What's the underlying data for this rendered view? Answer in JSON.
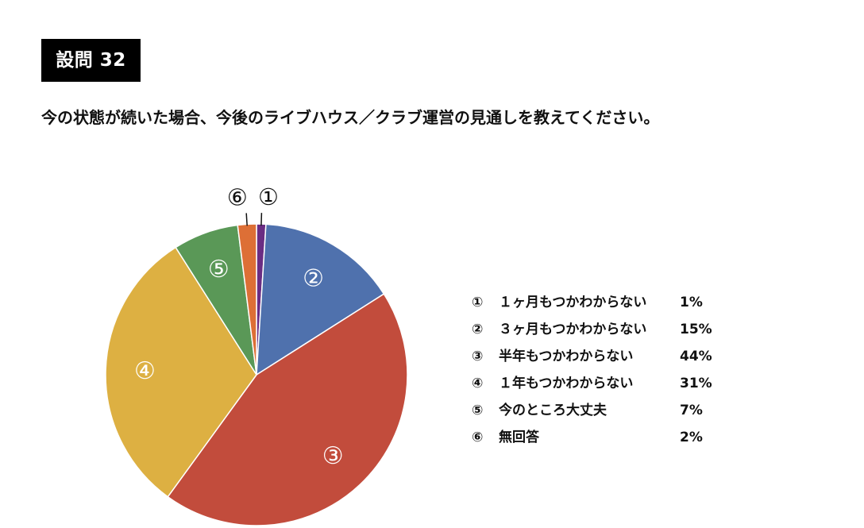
{
  "header": {
    "badge": "設問 32",
    "question": "今の状態が続いた場合、今後のライブハウス／クラブ運営の見通しを教えてください。"
  },
  "chart_data": {
    "type": "pie",
    "start_angle": "12 o'clock",
    "direction": "clockwise",
    "slices": [
      {
        "marker": "①",
        "label": "１ヶ月もつかわからない",
        "value": 1,
        "value_label": "1%",
        "color": "#6a2d83"
      },
      {
        "marker": "②",
        "label": "３ヶ月もつかわからない",
        "value": 15,
        "value_label": "15%",
        "color": "#4f71ad"
      },
      {
        "marker": "③",
        "label": "半年もつかわからない",
        "value": 44,
        "value_label": "44%",
        "color": "#c24c3c"
      },
      {
        "marker": "④",
        "label": "１年もつかわからない",
        "value": 31,
        "value_label": "31%",
        "color": "#ddb042"
      },
      {
        "marker": "⑤",
        "label": "今のところ大丈夫",
        "value": 7,
        "value_label": "7%",
        "color": "#5a9857"
      },
      {
        "marker": "⑥",
        "label": "無回答",
        "value": 2,
        "value_label": "2%",
        "color": "#dd6f36"
      }
    ],
    "legend_position": "right"
  }
}
